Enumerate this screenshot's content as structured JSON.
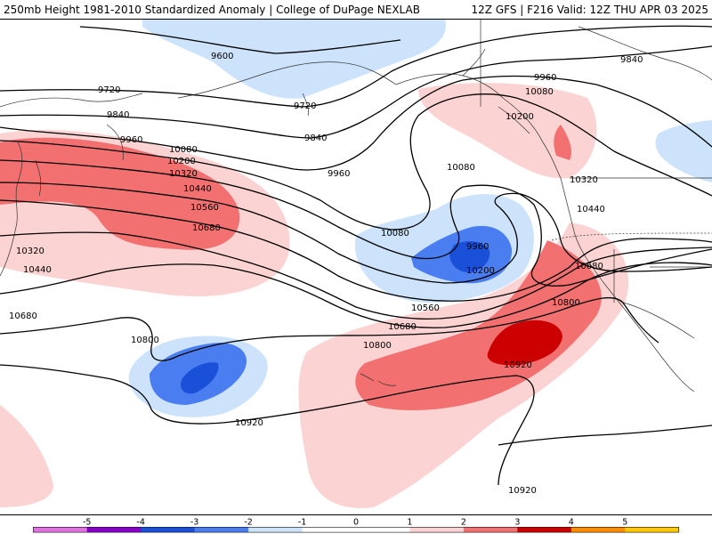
{
  "header": {
    "title": "250mb Height 1981-2010 Standardized Anomaly | College of DuPage NEXLAB",
    "run_info": "12Z GFS | F216 Valid: 12Z THU APR 03 2025"
  },
  "colors": {
    "neg5": "#e070e0",
    "neg4": "#8800c8",
    "neg3": "#1a4fd8",
    "neg2": "#4a7ef0",
    "neg1": "#cce3fb",
    "pos1": "#fcd3d3",
    "pos2": "#f27070",
    "pos3": "#cc0000",
    "pos4": "#ff8c00",
    "pos5": "#ffc800"
  },
  "contour_labels": [
    {
      "text": "9600"
    },
    {
      "text": "9720"
    },
    {
      "text": "9720"
    },
    {
      "text": "9840"
    },
    {
      "text": "9840"
    },
    {
      "text": "9840"
    },
    {
      "text": "9960"
    },
    {
      "text": "9960"
    },
    {
      "text": "9960"
    },
    {
      "text": "9960"
    },
    {
      "text": "10080"
    },
    {
      "text": "10080"
    },
    {
      "text": "10080"
    },
    {
      "text": "10080"
    },
    {
      "text": "10200"
    },
    {
      "text": "10200"
    },
    {
      "text": "10200"
    },
    {
      "text": "10320"
    },
    {
      "text": "10320"
    },
    {
      "text": "10320"
    },
    {
      "text": "10440"
    },
    {
      "text": "10440"
    },
    {
      "text": "10440"
    },
    {
      "text": "10560"
    },
    {
      "text": "10560"
    },
    {
      "text": "10680"
    },
    {
      "text": "10680"
    },
    {
      "text": "10680"
    },
    {
      "text": "10680"
    },
    {
      "text": "10800"
    },
    {
      "text": "10800"
    },
    {
      "text": "10800"
    },
    {
      "text": "10920"
    },
    {
      "text": "10920"
    },
    {
      "text": "10920"
    }
  ],
  "colorbar": {
    "ticks": [
      "-5",
      "-4",
      "-3",
      "-2",
      "-1",
      "0",
      "1",
      "2",
      "3",
      "4",
      "5"
    ]
  }
}
